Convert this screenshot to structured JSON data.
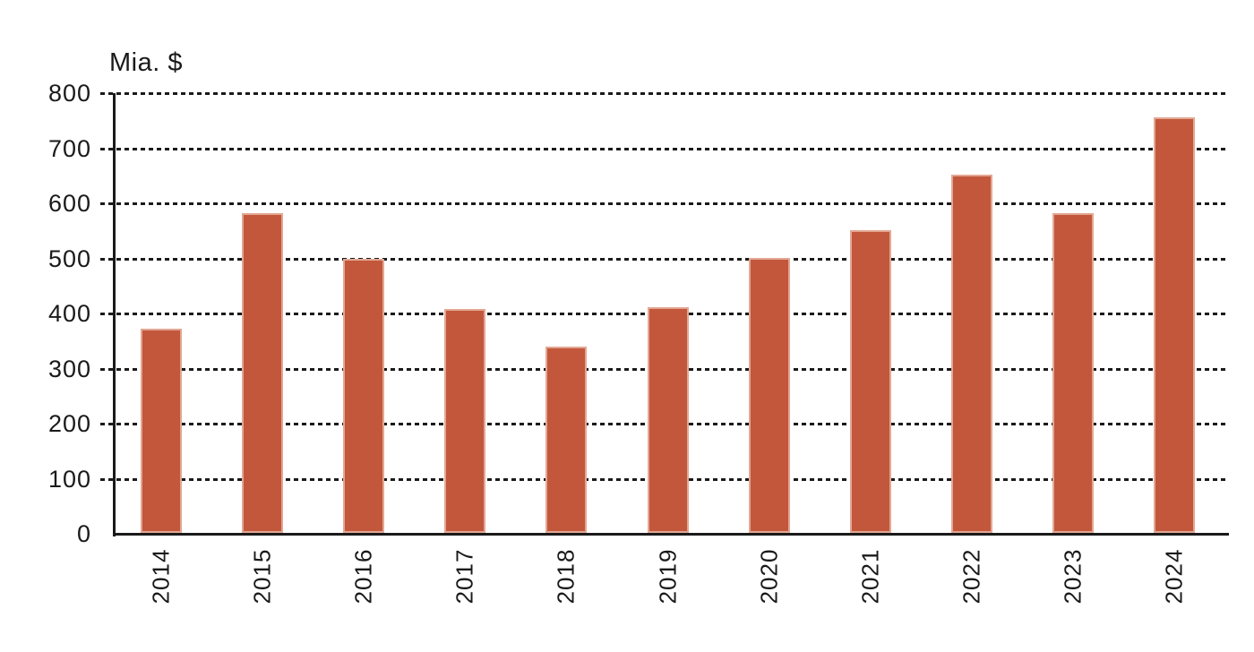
{
  "chart_data": {
    "type": "bar",
    "title": "",
    "xlabel": "",
    "ylabel": "Mia. $",
    "categories": [
      "2014",
      "2015",
      "2016",
      "2017",
      "2018",
      "2019",
      "2020",
      "2021",
      "2022",
      "2023",
      "2024"
    ],
    "values": [
      370,
      580,
      497,
      407,
      338,
      409,
      499,
      550,
      651,
      580,
      755
    ],
    "ylim": [
      0,
      800
    ],
    "yticks": [
      0,
      100,
      200,
      300,
      400,
      500,
      600,
      700,
      800
    ],
    "grid": "horizontal-dashed",
    "legend": "none",
    "xtick_rotation_deg": -90,
    "colors": {
      "bar": "#c2573c",
      "bar_edge": "#f0d2c2",
      "axis": "#1a1a1a",
      "text": "#1a1a1a",
      "background": "#ffffff"
    }
  }
}
